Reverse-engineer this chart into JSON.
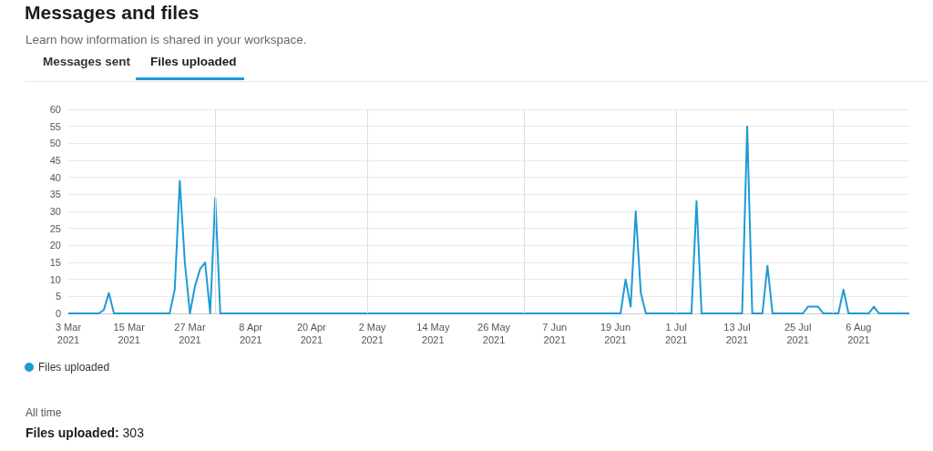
{
  "chart_data": {
    "type": "line",
    "title": "Messages and files",
    "subtitle": "Learn how information is shared in your workspace.",
    "annotations": [
      "Messages sent",
      "Files uploaded",
      "All time",
      "Files uploaded: 303"
    ],
    "series": [
      {
        "name": "Files uploaded",
        "color": "#1e9ad6",
        "x": [
          "2021-03-03",
          "2021-03-09",
          "2021-03-10",
          "2021-03-11",
          "2021-03-12",
          "2021-03-23",
          "2021-03-24",
          "2021-03-25",
          "2021-03-26",
          "2021-03-27",
          "2021-03-28",
          "2021-03-29",
          "2021-03-30",
          "2021-03-31",
          "2021-04-01",
          "2021-04-02",
          "2021-06-20",
          "2021-06-21",
          "2021-06-22",
          "2021-06-23",
          "2021-06-24",
          "2021-06-25",
          "2021-07-04",
          "2021-07-05",
          "2021-07-06",
          "2021-07-14",
          "2021-07-15",
          "2021-07-16",
          "2021-07-18",
          "2021-07-19",
          "2021-07-20",
          "2021-07-26",
          "2021-07-27",
          "2021-07-28",
          "2021-07-29",
          "2021-07-30",
          "2021-08-02",
          "2021-08-03",
          "2021-08-04",
          "2021-08-08",
          "2021-08-09",
          "2021-08-10",
          "2021-08-16"
        ],
        "values": [
          0,
          0,
          1,
          6,
          0,
          0,
          7,
          39,
          15,
          0,
          8,
          13,
          15,
          0,
          34,
          0,
          0,
          10,
          2,
          30,
          6,
          0,
          0,
          33,
          0,
          0,
          55,
          0,
          0,
          14,
          0,
          0,
          2,
          2,
          2,
          0,
          0,
          7,
          0,
          0,
          2,
          0,
          0
        ]
      }
    ],
    "xlim": [
      "2021-03-03",
      "2021-08-16"
    ],
    "xticks": [
      {
        "value": "2021-03-03",
        "label": "3 Mar\n2021"
      },
      {
        "value": "2021-03-15",
        "label": "15 Mar\n2021"
      },
      {
        "value": "2021-03-27",
        "label": "27 Mar\n2021"
      },
      {
        "value": "2021-04-08",
        "label": "8 Apr\n2021"
      },
      {
        "value": "2021-04-20",
        "label": "20 Apr\n2021"
      },
      {
        "value": "2021-05-02",
        "label": "2 May\n2021"
      },
      {
        "value": "2021-05-14",
        "label": "14 May\n2021"
      },
      {
        "value": "2021-05-26",
        "label": "26 May\n2021"
      },
      {
        "value": "2021-06-07",
        "label": "7 Jun\n2021"
      },
      {
        "value": "2021-06-19",
        "label": "19 Jun\n2021"
      },
      {
        "value": "2021-07-01",
        "label": "1 Jul\n2021"
      },
      {
        "value": "2021-07-13",
        "label": "13 Jul\n2021"
      },
      {
        "value": "2021-07-25",
        "label": "25 Jul\n2021"
      },
      {
        "value": "2021-08-06",
        "label": "6 Aug\n2021"
      }
    ],
    "ylim": [
      0,
      60
    ],
    "yticks": [
      0,
      5,
      10,
      15,
      20,
      25,
      30,
      35,
      40,
      45,
      50,
      55,
      60
    ],
    "ref_lines": [
      {
        "axis": "x",
        "value": "2021-04-01",
        "color": "#dcdce4"
      },
      {
        "axis": "x",
        "value": "2021-05-01",
        "color": "#dcdce4"
      },
      {
        "axis": "x",
        "value": "2021-06-01",
        "color": "#dcdce4"
      },
      {
        "axis": "x",
        "value": "2021-07-01",
        "color": "#dcdce4"
      },
      {
        "axis": "x",
        "value": "2021-08-01",
        "color": "#dcdce4"
      }
    ],
    "grid": "y",
    "legend": "bottom left",
    "marker": "none",
    "line_style": "solid"
  }
}
